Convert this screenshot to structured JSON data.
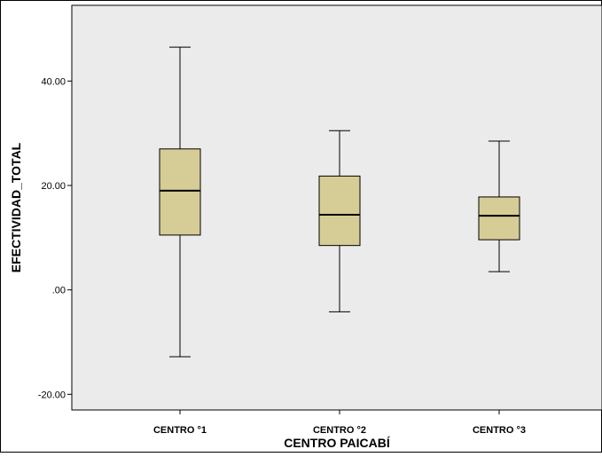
{
  "chart_data": {
    "type": "boxplot",
    "xlabel": "CENTRO PAICABÍ",
    "ylabel": "EFECTIVIDAD_TOTAL",
    "ylim": [
      -23,
      54.5
    ],
    "yticks": [
      40,
      20,
      0,
      -20
    ],
    "ytick_labels": [
      "40.00",
      "20.00",
      ".00",
      "-20.00"
    ],
    "grid": false,
    "colors": {
      "plot_bg": "#ebebeb",
      "box_fill": "#d6cc96",
      "stroke": "#000000"
    },
    "categories": [
      "CENTRO °1",
      "CENTRO °2",
      "CENTRO °3"
    ],
    "boxes": [
      {
        "min": -12.8,
        "q1": 10.5,
        "median": 19.0,
        "q3": 27.0,
        "max": 46.5
      },
      {
        "min": -4.2,
        "q1": 8.5,
        "median": 14.4,
        "q3": 21.8,
        "max": 30.5
      },
      {
        "min": 3.5,
        "q1": 9.6,
        "median": 14.2,
        "q3": 17.8,
        "max": 28.5
      }
    ]
  }
}
